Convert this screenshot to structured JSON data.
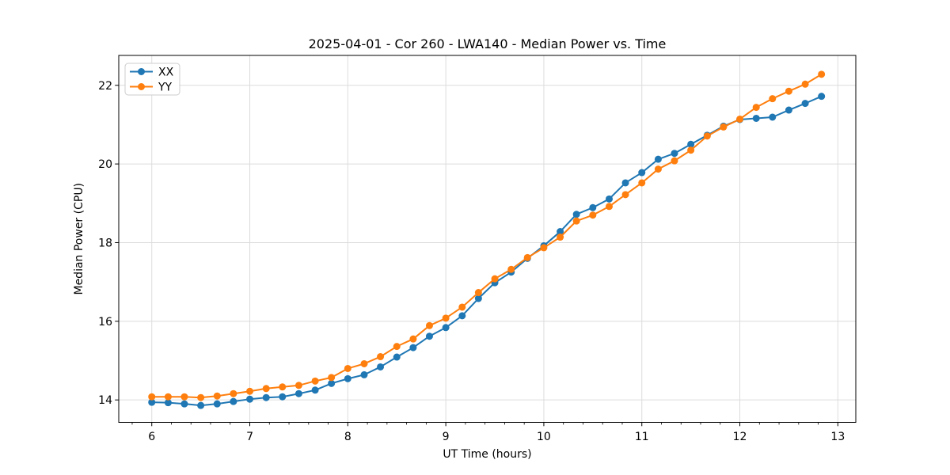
{
  "chart_style": {
    "background": "#ffffff",
    "spine_color": "#000000",
    "grid_color": "#dcdcdc",
    "tick_color": "#000000",
    "text_color": "#000000",
    "legend_border": "#cccccc",
    "legend_bg": "#ffffff"
  },
  "chart_data": {
    "type": "line",
    "title": "2025-04-01 - Cor 260 - LWA140 - Median Power vs. Time",
    "xlabel": "UT Time (hours)",
    "ylabel": "Median Power (CPU)",
    "xlim": [
      5.663,
      13.183
    ],
    "ylim": [
      13.43,
      22.76
    ],
    "xticks": [
      6,
      7,
      8,
      9,
      10,
      11,
      12,
      13
    ],
    "yticks": [
      14,
      16,
      18,
      20,
      22
    ],
    "x_minor_tick_step": 0.2,
    "grid": true,
    "legend_position": "upper left",
    "marker": "circle",
    "x": [
      6.0,
      6.167,
      6.333,
      6.5,
      6.667,
      6.833,
      7.0,
      7.167,
      7.333,
      7.5,
      7.667,
      7.833,
      8.0,
      8.167,
      8.333,
      8.5,
      8.667,
      8.833,
      9.0,
      9.167,
      9.333,
      9.5,
      9.667,
      9.833,
      10.0,
      10.167,
      10.333,
      10.5,
      10.667,
      10.833,
      11.0,
      11.167,
      11.333,
      11.5,
      11.667,
      11.833,
      12.0,
      12.167,
      12.333,
      12.5,
      12.667,
      12.833
    ],
    "series": [
      {
        "name": "XX",
        "color": "#1f77b4",
        "values": [
          13.94,
          13.93,
          13.9,
          13.86,
          13.9,
          13.96,
          14.02,
          14.06,
          14.08,
          14.16,
          14.25,
          14.42,
          14.54,
          14.64,
          14.84,
          15.09,
          15.33,
          15.62,
          15.84,
          16.14,
          16.58,
          16.98,
          17.25,
          17.6,
          17.92,
          18.28,
          18.72,
          18.89,
          19.11,
          19.52,
          19.78,
          20.12,
          20.27,
          20.5,
          20.73,
          20.96,
          21.13,
          21.16,
          21.19,
          21.37,
          21.54,
          21.72
        ]
      },
      {
        "name": "YY",
        "color": "#ff7f0e",
        "values": [
          14.08,
          14.08,
          14.08,
          14.06,
          14.1,
          14.16,
          14.22,
          14.29,
          14.33,
          14.37,
          14.48,
          14.57,
          14.8,
          14.92,
          15.1,
          15.36,
          15.55,
          15.89,
          16.08,
          16.36,
          16.73,
          17.08,
          17.32,
          17.62,
          17.87,
          18.14,
          18.55,
          18.7,
          18.92,
          19.22,
          19.52,
          19.87,
          20.08,
          20.35,
          20.71,
          20.94,
          21.14,
          21.44,
          21.66,
          21.85,
          22.03,
          22.28
        ]
      }
    ]
  }
}
